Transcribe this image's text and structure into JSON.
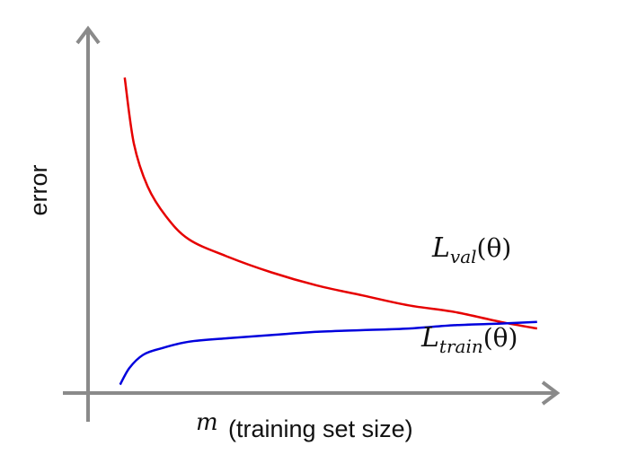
{
  "chart_data": {
    "type": "line",
    "ylabel": "error",
    "xlabel": {
      "symbol": "m",
      "text": "(training set size)"
    },
    "xlim": [
      0,
      1
    ],
    "ylim": [
      0,
      1
    ],
    "ticks": "none",
    "grid": false,
    "series": [
      {
        "name": "L_val(θ)",
        "label": {
          "base": "L",
          "sub": "val",
          "arg": "(θ)"
        },
        "color": "#e60000",
        "x": [
          0.08,
          0.1,
          0.13,
          0.17,
          0.22,
          0.3,
          0.4,
          0.5,
          0.6,
          0.7,
          0.8,
          0.9,
          0.98
        ],
        "y": [
          0.95,
          0.75,
          0.62,
          0.53,
          0.46,
          0.41,
          0.36,
          0.32,
          0.29,
          0.26,
          0.24,
          0.21,
          0.19
        ]
      },
      {
        "name": "L_train(θ)",
        "label": {
          "base": "L",
          "sub": "train",
          "arg": "(θ)"
        },
        "color": "#0000dd",
        "x": [
          0.07,
          0.09,
          0.12,
          0.16,
          0.22,
          0.3,
          0.4,
          0.5,
          0.6,
          0.7,
          0.8,
          0.9,
          0.98
        ],
        "y": [
          0.02,
          0.07,
          0.11,
          0.13,
          0.15,
          0.16,
          0.17,
          0.18,
          0.185,
          0.19,
          0.2,
          0.205,
          0.21
        ]
      }
    ]
  }
}
